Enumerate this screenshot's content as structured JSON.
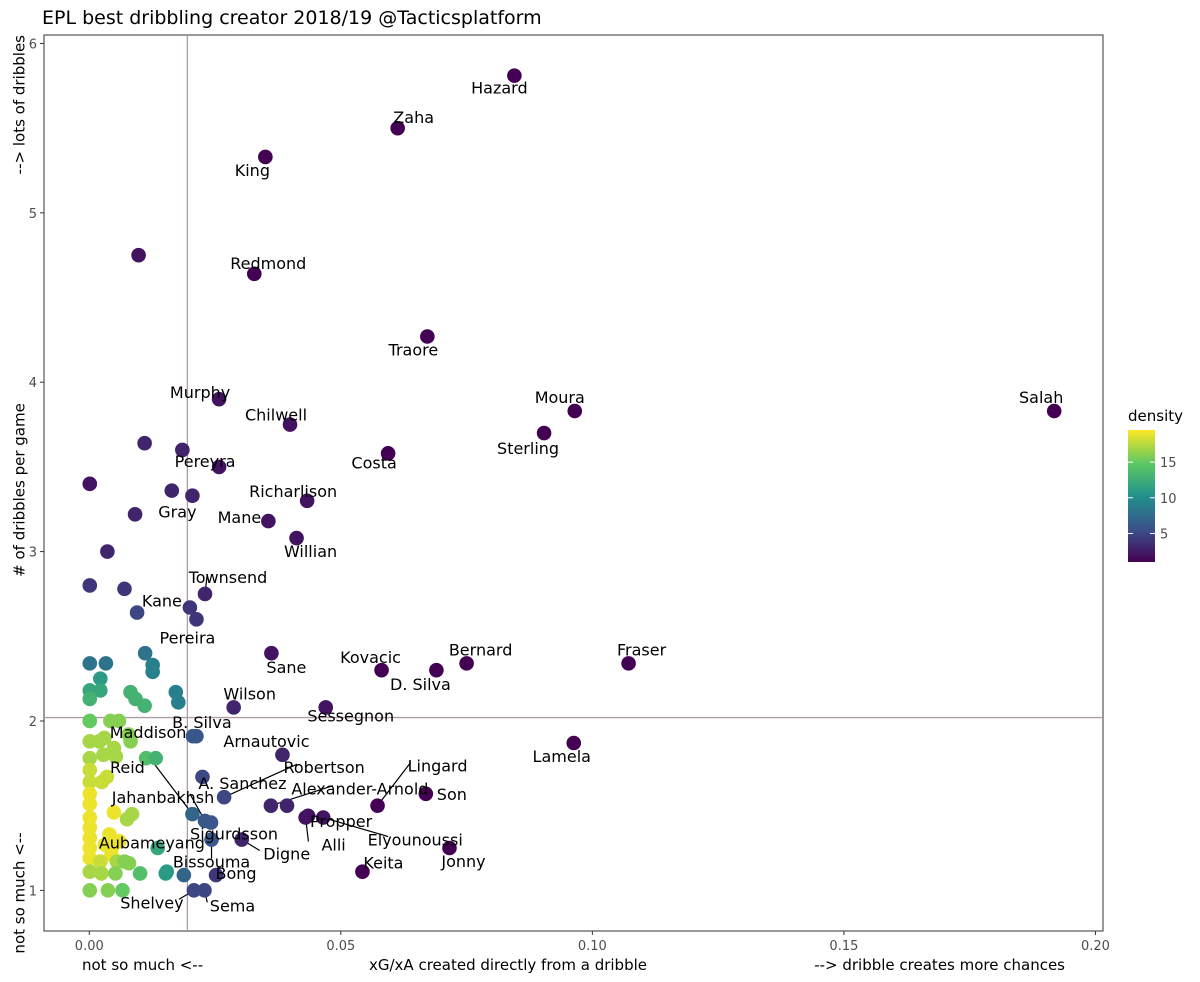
{
  "chart_data": {
    "type": "scatter",
    "title": "EPL best dribbling creator 2018/19 @Tacticsplatform",
    "xlabel": "xG/xA created directly from a dribble",
    "xlabel_left": "not so much <--",
    "xlabel_right": "--> dribble creates more chances",
    "ylabel": "# of dribbles per game",
    "ylabel_low": "not so much <--",
    "ylabel_high": "--> lots of dribbles",
    "xlim": [
      -0.009,
      0.2015
    ],
    "ylim": [
      0.76,
      6.05
    ],
    "x_ticks": [
      0.0,
      0.05,
      0.1,
      0.15,
      0.2
    ],
    "x_tick_labels": [
      "0.00",
      "0.05",
      "0.10",
      "0.15",
      "0.20"
    ],
    "y_ticks": [
      1,
      2,
      3,
      4,
      5,
      6
    ],
    "y_tick_labels": [
      "1",
      "2",
      "3",
      "4",
      "5",
      "6"
    ],
    "reference_lines": {
      "x": 0.0195,
      "y": 2.02
    },
    "grid": false,
    "legend": {
      "title": "density",
      "position": "right",
      "range": [
        1,
        19.5
      ],
      "ticks": [
        5,
        10,
        15
      ],
      "tick_labels": [
        "5",
        "10",
        "15"
      ]
    },
    "points": [
      {
        "x": 0.0845,
        "y": 5.81,
        "d": 1,
        "label": "Hazard"
      },
      {
        "x": 0.0613,
        "y": 5.5,
        "d": 1,
        "label": "Zaha"
      },
      {
        "x": 0.035,
        "y": 5.33,
        "d": 1,
        "label": "King"
      },
      {
        "x": 0.0098,
        "y": 4.75,
        "d": 2,
        "label": ""
      },
      {
        "x": 0.0328,
        "y": 4.64,
        "d": 1,
        "label": "Redmond"
      },
      {
        "x": 0.0672,
        "y": 4.27,
        "d": 1,
        "label": "Traore"
      },
      {
        "x": 0.0258,
        "y": 3.9,
        "d": 2,
        "label": "Murphy"
      },
      {
        "x": 0.1918,
        "y": 3.83,
        "d": 1,
        "label": "Salah"
      },
      {
        "x": 0.0965,
        "y": 3.83,
        "d": 1,
        "label": "Moura"
      },
      {
        "x": 0.0399,
        "y": 3.75,
        "d": 2,
        "label": "Chilwell"
      },
      {
        "x": 0.0904,
        "y": 3.7,
        "d": 1,
        "label": "Sterling"
      },
      {
        "x": 0.011,
        "y": 3.64,
        "d": 3,
        "label": ""
      },
      {
        "x": 0.0185,
        "y": 3.6,
        "d": 3,
        "label": ""
      },
      {
        "x": 0.0594,
        "y": 3.58,
        "d": 1,
        "label": "Costa"
      },
      {
        "x": 0.0258,
        "y": 3.5,
        "d": 2,
        "label": "Pereyra"
      },
      {
        "x": 0.0001,
        "y": 3.4,
        "d": 2,
        "label": ""
      },
      {
        "x": 0.0164,
        "y": 3.36,
        "d": 3,
        "label": ""
      },
      {
        "x": 0.0205,
        "y": 3.33,
        "d": 3,
        "label": "Gray"
      },
      {
        "x": 0.0433,
        "y": 3.3,
        "d": 2,
        "label": "Richarlison"
      },
      {
        "x": 0.0091,
        "y": 3.22,
        "d": 3,
        "label": ""
      },
      {
        "x": 0.0356,
        "y": 3.18,
        "d": 2,
        "label": "Mane"
      },
      {
        "x": 0.0412,
        "y": 3.08,
        "d": 2,
        "label": "Willian"
      },
      {
        "x": 0.0036,
        "y": 3.0,
        "d": 3,
        "label": ""
      },
      {
        "x": 0.0001,
        "y": 2.8,
        "d": 4,
        "label": ""
      },
      {
        "x": 0.007,
        "y": 2.78,
        "d": 4,
        "label": ""
      },
      {
        "x": 0.023,
        "y": 2.75,
        "d": 3,
        "label": "Townsend"
      },
      {
        "x": 0.02,
        "y": 2.67,
        "d": 4,
        "label": "Kane"
      },
      {
        "x": 0.0095,
        "y": 2.64,
        "d": 5,
        "label": ""
      },
      {
        "x": 0.0213,
        "y": 2.6,
        "d": 4,
        "label": "Pereira"
      },
      {
        "x": 0.0362,
        "y": 2.4,
        "d": 2,
        "label": "Sane"
      },
      {
        "x": 0.0111,
        "y": 2.4,
        "d": 8,
        "label": ""
      },
      {
        "x": 0.0001,
        "y": 2.34,
        "d": 8,
        "label": ""
      },
      {
        "x": 0.0033,
        "y": 2.34,
        "d": 8,
        "label": ""
      },
      {
        "x": 0.0126,
        "y": 2.33,
        "d": 9,
        "label": ""
      },
      {
        "x": 0.075,
        "y": 2.34,
        "d": 1,
        "label": "Bernard"
      },
      {
        "x": 0.1072,
        "y": 2.34,
        "d": 1,
        "label": "Fraser"
      },
      {
        "x": 0.0581,
        "y": 2.3,
        "d": 1,
        "label": "Kovacic"
      },
      {
        "x": 0.069,
        "y": 2.3,
        "d": 1,
        "label": "D. Silva"
      },
      {
        "x": 0.0126,
        "y": 2.29,
        "d": 9,
        "label": ""
      },
      {
        "x": 0.0022,
        "y": 2.25,
        "d": 11,
        "label": ""
      },
      {
        "x": 0.0001,
        "y": 2.18,
        "d": 12,
        "label": ""
      },
      {
        "x": 0.0022,
        "y": 2.18,
        "d": 12,
        "label": ""
      },
      {
        "x": 0.0172,
        "y": 2.17,
        "d": 9,
        "label": ""
      },
      {
        "x": 0.0082,
        "y": 2.17,
        "d": 13,
        "label": ""
      },
      {
        "x": 0.0001,
        "y": 2.13,
        "d": 13,
        "label": ""
      },
      {
        "x": 0.0092,
        "y": 2.13,
        "d": 13,
        "label": ""
      },
      {
        "x": 0.0177,
        "y": 2.11,
        "d": 9,
        "label": ""
      },
      {
        "x": 0.011,
        "y": 2.09,
        "d": 13,
        "label": ""
      },
      {
        "x": 0.0287,
        "y": 2.08,
        "d": 3,
        "label": "Wilson"
      },
      {
        "x": 0.047,
        "y": 2.08,
        "d": 2,
        "label": "Sessegnon"
      },
      {
        "x": 0.0001,
        "y": 2.0,
        "d": 15,
        "label": ""
      },
      {
        "x": 0.0042,
        "y": 2.0,
        "d": 16,
        "label": ""
      },
      {
        "x": 0.0059,
        "y": 2.0,
        "d": 16,
        "label": ""
      },
      {
        "x": 0.0206,
        "y": 1.91,
        "d": 6,
        "label": "B. Silva"
      },
      {
        "x": 0.0213,
        "y": 1.91,
        "d": 6,
        "label": ""
      },
      {
        "x": 0.0078,
        "y": 1.92,
        "d": 16,
        "label": ""
      },
      {
        "x": 0.003,
        "y": 1.9,
        "d": 17,
        "label": ""
      },
      {
        "x": 0.0001,
        "y": 1.88,
        "d": 17,
        "label": ""
      },
      {
        "x": 0.002,
        "y": 1.88,
        "d": 17,
        "label": ""
      },
      {
        "x": 0.0082,
        "y": 1.88,
        "d": 16,
        "label": ""
      },
      {
        "x": 0.0963,
        "y": 1.87,
        "d": 1,
        "label": "Lamela"
      },
      {
        "x": 0.0049,
        "y": 1.84,
        "d": 17,
        "label": ""
      },
      {
        "x": 0.0384,
        "y": 1.8,
        "d": 3,
        "label": "Arnautovic"
      },
      {
        "x": 0.0028,
        "y": 1.8,
        "d": 17,
        "label": ""
      },
      {
        "x": 0.0001,
        "y": 1.78,
        "d": 17,
        "label": ""
      },
      {
        "x": 0.0053,
        "y": 1.79,
        "d": 17,
        "label": ""
      },
      {
        "x": 0.0113,
        "y": 1.78,
        "d": 14,
        "label": "Maddison"
      },
      {
        "x": 0.0132,
        "y": 1.78,
        "d": 13,
        "label": ""
      },
      {
        "x": 0.0001,
        "y": 1.71,
        "d": 18,
        "label": ""
      },
      {
        "x": 0.0225,
        "y": 1.67,
        "d": 5,
        "label": "A. Sanchez"
      },
      {
        "x": 0.0035,
        "y": 1.67,
        "d": 18,
        "label": ""
      },
      {
        "x": 0.0001,
        "y": 1.64,
        "d": 18,
        "label": ""
      },
      {
        "x": 0.0025,
        "y": 1.64,
        "d": 18,
        "label": ""
      },
      {
        "x": 0.0001,
        "y": 1.57,
        "d": 19,
        "label": ""
      },
      {
        "x": 0.0268,
        "y": 1.55,
        "d": 5,
        "label": "Robertson"
      },
      {
        "x": 0.0669,
        "y": 1.57,
        "d": 1,
        "label": "Son"
      },
      {
        "x": 0.0001,
        "y": 1.51,
        "d": 19,
        "label": ""
      },
      {
        "x": 0.0361,
        "y": 1.5,
        "d": 3,
        "label": "Alexander-Arnold"
      },
      {
        "x": 0.0393,
        "y": 1.5,
        "d": 3,
        "label": ""
      },
      {
        "x": 0.0573,
        "y": 1.5,
        "d": 1,
        "label": "Lingard"
      },
      {
        "x": 0.0049,
        "y": 1.46,
        "d": 19,
        "label": ""
      },
      {
        "x": 0.0085,
        "y": 1.45,
        "d": 17,
        "label": ""
      },
      {
        "x": 0.0205,
        "y": 1.45,
        "d": 7,
        "label": "Reid"
      },
      {
        "x": 0.0001,
        "y": 1.43,
        "d": 19,
        "label": ""
      },
      {
        "x": 0.0075,
        "y": 1.42,
        "d": 17,
        "label": ""
      },
      {
        "x": 0.043,
        "y": 1.43,
        "d": 2,
        "label": "Alli"
      },
      {
        "x": 0.0465,
        "y": 1.43,
        "d": 2,
        "label": "Elyounoussi"
      },
      {
        "x": 0.023,
        "y": 1.41,
        "d": 6,
        "label": "Jahanbakhsh"
      },
      {
        "x": 0.0242,
        "y": 1.4,
        "d": 6,
        "label": "Sigurdsson"
      },
      {
        "x": 0.0001,
        "y": 1.37,
        "d": 19,
        "label": ""
      },
      {
        "x": 0.004,
        "y": 1.33,
        "d": 19,
        "label": ""
      },
      {
        "x": 0.0001,
        "y": 1.31,
        "d": 19,
        "label": ""
      },
      {
        "x": 0.0303,
        "y": 1.3,
        "d": 3,
        "label": "Digne"
      },
      {
        "x": 0.006,
        "y": 1.29,
        "d": 19,
        "label": ""
      },
      {
        "x": 0.0031,
        "y": 1.27,
        "d": 19,
        "label": "Aubameyang"
      },
      {
        "x": 0.0046,
        "y": 1.26,
        "d": 19,
        "label": ""
      },
      {
        "x": 0.0001,
        "y": 1.25,
        "d": 19,
        "label": ""
      },
      {
        "x": 0.0716,
        "y": 1.25,
        "d": 1,
        "label": "Jonny"
      },
      {
        "x": 0.0136,
        "y": 1.25,
        "d": 12,
        "label": ""
      },
      {
        "x": 0.0044,
        "y": 1.21,
        "d": 19,
        "label": ""
      },
      {
        "x": 0.0001,
        "y": 1.19,
        "d": 19,
        "label": ""
      },
      {
        "x": 0.0022,
        "y": 1.17,
        "d": 18,
        "label": ""
      },
      {
        "x": 0.0055,
        "y": 1.17,
        "d": 17,
        "label": ""
      },
      {
        "x": 0.007,
        "y": 1.17,
        "d": 16,
        "label": ""
      },
      {
        "x": 0.0079,
        "y": 1.16,
        "d": 16,
        "label": ""
      },
      {
        "x": 0.0001,
        "y": 1.11,
        "d": 17,
        "label": ""
      },
      {
        "x": 0.0024,
        "y": 1.1,
        "d": 17,
        "label": ""
      },
      {
        "x": 0.0052,
        "y": 1.1,
        "d": 16,
        "label": ""
      },
      {
        "x": 0.0101,
        "y": 1.1,
        "d": 14,
        "label": ""
      },
      {
        "x": 0.0152,
        "y": 1.1,
        "d": 11,
        "label": ""
      },
      {
        "x": 0.0154,
        "y": 1.11,
        "d": 11,
        "label": ""
      },
      {
        "x": 0.0188,
        "y": 1.09,
        "d": 7,
        "label": ""
      },
      {
        "x": 0.0252,
        "y": 1.09,
        "d": 4,
        "label": "Bong"
      },
      {
        "x": 0.0543,
        "y": 1.11,
        "d": 1,
        "label": "Keita"
      },
      {
        "x": 0.0001,
        "y": 1.0,
        "d": 16,
        "label": ""
      },
      {
        "x": 0.0037,
        "y": 1.0,
        "d": 16,
        "label": ""
      },
      {
        "x": 0.0066,
        "y": 1.0,
        "d": 15,
        "label": ""
      },
      {
        "x": 0.0208,
        "y": 1.0,
        "d": 5,
        "label": "Shelvey"
      },
      {
        "x": 0.0229,
        "y": 1.0,
        "d": 5,
        "label": "Sema"
      },
      {
        "x": 0.0243,
        "y": 1.3,
        "d": 6,
        "label": "Bissouma"
      },
      {
        "x": 0.0435,
        "y": 1.44,
        "d": 2,
        "label": "Propper"
      }
    ]
  }
}
